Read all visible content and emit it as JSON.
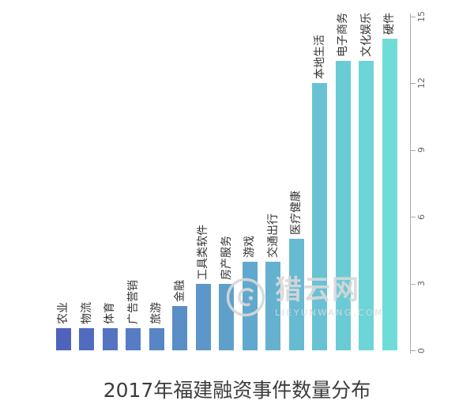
{
  "chart_data": {
    "type": "bar",
    "title": "2017年福建融资事件数量分布",
    "categories": [
      "农业",
      "物流",
      "体育",
      "广告营销",
      "旅游",
      "金融",
      "工具类软件",
      "房产服务",
      "游戏",
      "交通出行",
      "医疗健康",
      "本地生活",
      "电子商务",
      "文化娱乐",
      "硬件"
    ],
    "values": [
      1,
      1,
      1,
      1,
      1,
      2,
      3,
      3,
      4,
      4,
      5,
      12,
      13,
      13,
      14
    ],
    "colors": [
      "#4f63bd",
      "#516cbf",
      "#5474c1",
      "#567dc3",
      "#5886c5",
      "#5a8ec7",
      "#5d97c9",
      "#5fa0cb",
      "#61a8ce",
      "#64b1d0",
      "#66bad2",
      "#68c2d4",
      "#6acbd6",
      "#6dd4d8",
      "#6fdcda"
    ],
    "xlabel": "",
    "ylabel": "",
    "ylim": [
      0,
      15
    ],
    "yticks": [
      0,
      3,
      6,
      9,
      12,
      15
    ],
    "axis_side": "right",
    "category_label_rotation_deg": 90,
    "grid": false,
    "legend": "none"
  },
  "watermark": {
    "name": "猎云网",
    "domain": "LIEYUNWANG.COM"
  },
  "colors": {
    "background": "#ffffff",
    "axis": "#aaaaaa",
    "tick_label": "#666666",
    "bar_label": "#333333",
    "title": "#3c3c3c",
    "watermark": "#d8d8d8"
  }
}
